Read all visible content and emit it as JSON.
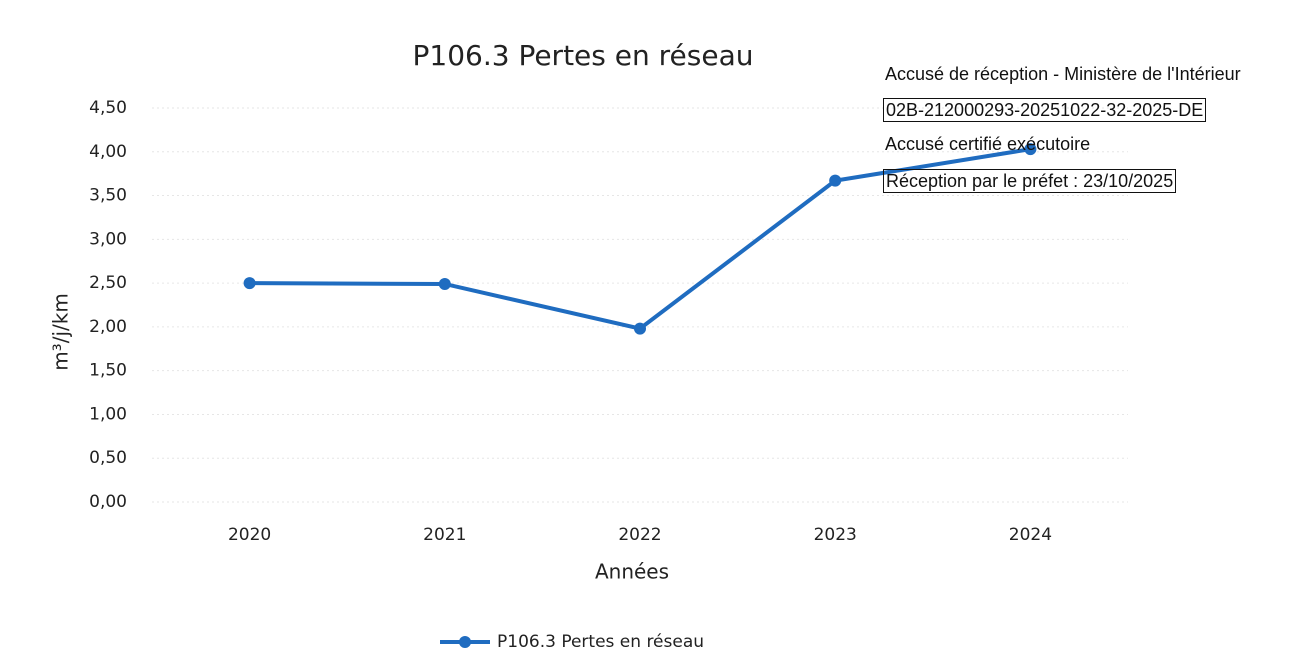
{
  "chart_data": {
    "type": "line",
    "title": "P106.3 Pertes en réseau",
    "x_label": "Années",
    "y_label": "m³/j/km",
    "categories": [
      "2020",
      "2021",
      "2022",
      "2023",
      "2024"
    ],
    "series": [
      {
        "name": "P106.3 Pertes en réseau",
        "color": "#1f6cc0",
        "values": [
          2.5,
          2.49,
          1.98,
          3.67,
          4.03
        ]
      }
    ],
    "ylim": [
      0,
      4.5
    ],
    "yticks": [
      {
        "value": 0,
        "label": "0,00"
      },
      {
        "value": 0.5,
        "label": "0,50"
      },
      {
        "value": 1,
        "label": "1,00"
      },
      {
        "value": 1.5,
        "label": "1,50"
      },
      {
        "value": 2,
        "label": "2,00"
      },
      {
        "value": 2.5,
        "label": "2,50"
      },
      {
        "value": 3,
        "label": "3,00"
      },
      {
        "value": 3.5,
        "label": "3,50"
      },
      {
        "value": 4,
        "label": "4,00"
      },
      {
        "value": 4.5,
        "label": "4,50"
      }
    ],
    "grid": true,
    "legend": "bottom",
    "annotations": [
      {
        "text": "Accusé de réception - Ministère de l'Intérieur",
        "boxed": false
      },
      {
        "text": "02B-212000293-20251022-32-2025-DE",
        "boxed": true
      },
      {
        "text": "Accusé certifié exécutoire",
        "boxed": false
      },
      {
        "text": "Réception par le préfet : 23/10/2025",
        "boxed": true
      }
    ]
  }
}
